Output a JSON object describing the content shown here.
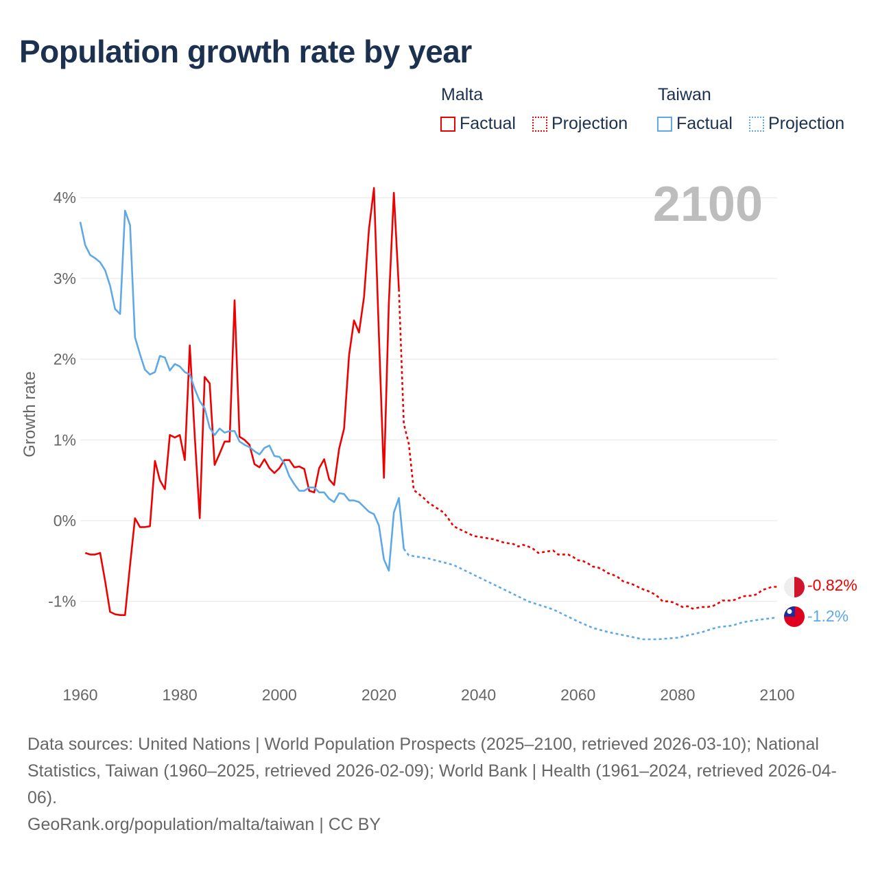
{
  "title": "Population growth rate by year",
  "legend": {
    "groups": [
      {
        "name": "Malta",
        "color": "#ee0000",
        "items": [
          "Factual",
          "Projection"
        ]
      },
      {
        "name": "Taiwan",
        "color": "#5fa8e8",
        "items": [
          "Factual",
          "Projection"
        ]
      }
    ]
  },
  "year_label": "2100",
  "end_labels": {
    "malta": "-0.82%",
    "taiwan": "-1.2%"
  },
  "footer": {
    "sources": "Data sources: United Nations | World Population Prospects (2025–2100, retrieved 2026-03-10); National Statistics, Taiwan (1960–2025, retrieved 2026-02-09); World Bank | Health (1961–2024, retrieved 2026-04-06).",
    "credit": "GeoRank.org/population/malta/taiwan | CC BY"
  },
  "chart_data": {
    "type": "line",
    "title": "Population growth rate by year",
    "xlabel": "",
    "ylabel": "Growth rate",
    "xlim": [
      1960,
      2100
    ],
    "ylim": [
      -1.9,
      4.4
    ],
    "xticks": [
      "1960",
      "1980",
      "2000",
      "2020",
      "2040",
      "2060",
      "2080",
      "2100"
    ],
    "yticks": [
      {
        "v": 4,
        "label": "4%"
      },
      {
        "v": 3,
        "label": "3%"
      },
      {
        "v": 2,
        "label": "2%"
      },
      {
        "v": 1,
        "label": "1%"
      },
      {
        "v": 0,
        "label": "0%"
      },
      {
        "v": -1,
        "label": "-1%"
      }
    ],
    "grid": true,
    "series": [
      {
        "name": "Malta Factual",
        "color": "#ee0000",
        "dashed": false,
        "x_start": 1961,
        "values": [
          -0.4,
          -0.42,
          -0.42,
          -0.4,
          -0.75,
          -1.13,
          -1.16,
          -1.17,
          -1.17,
          -0.55,
          0.03,
          -0.08,
          -0.08,
          -0.07,
          0.74,
          0.5,
          0.39,
          1.06,
          1.03,
          1.06,
          0.75,
          2.17,
          1.05,
          0.03,
          1.78,
          1.7,
          0.69,
          0.83,
          0.98,
          0.98,
          2.73,
          1.04,
          1.0,
          0.94,
          0.7,
          0.66,
          0.76,
          0.65,
          0.59,
          0.65,
          0.75,
          0.75,
          0.66,
          0.67,
          0.64,
          0.37,
          0.35,
          0.65,
          0.76,
          0.51,
          0.44,
          0.89,
          1.14,
          2.05,
          2.48,
          2.33,
          2.77,
          3.61,
          4.12,
          2.3,
          0.53,
          2.7,
          4.06,
          2.87
        ]
      },
      {
        "name": "Malta Projection",
        "color": "#ee0000",
        "dashed": true,
        "x_start": 2024,
        "values": [
          2.87,
          1.2,
          0.95,
          0.38,
          0.33,
          0.28,
          0.22,
          0.18,
          0.14,
          0.1,
          0.02,
          -0.07,
          -0.1,
          -0.13,
          -0.16,
          -0.19,
          -0.2,
          -0.21,
          -0.22,
          -0.23,
          -0.25,
          -0.27,
          -0.28,
          -0.29,
          -0.32,
          -0.3,
          -0.32,
          -0.35,
          -0.4,
          -0.39,
          -0.38,
          -0.37,
          -0.42,
          -0.42,
          -0.42,
          -0.45,
          -0.49,
          -0.5,
          -0.53,
          -0.57,
          -0.58,
          -0.61,
          -0.65,
          -0.67,
          -0.7,
          -0.75,
          -0.77,
          -0.79,
          -0.82,
          -0.85,
          -0.87,
          -0.9,
          -0.94,
          -1.0,
          -1.0,
          -1.01,
          -1.04,
          -1.07,
          -1.06,
          -1.09,
          -1.08,
          -1.07,
          -1.07,
          -1.06,
          -1.03,
          -0.99,
          -0.99,
          -0.99,
          -0.97,
          -0.94,
          -0.93,
          -0.93,
          -0.91,
          -0.86,
          -0.84,
          -0.82,
          -0.82
        ]
      },
      {
        "name": "Taiwan Factual",
        "color": "#5fa8e8",
        "dashed": false,
        "x_start": 1960,
        "values": [
          3.7,
          3.41,
          3.29,
          3.25,
          3.2,
          3.1,
          2.91,
          2.62,
          2.56,
          3.84,
          3.66,
          2.27,
          2.06,
          1.87,
          1.81,
          1.84,
          2.04,
          2.02,
          1.86,
          1.94,
          1.91,
          1.84,
          1.81,
          1.63,
          1.48,
          1.39,
          1.15,
          1.06,
          1.14,
          1.09,
          1.11,
          1.11,
          0.98,
          0.94,
          0.91,
          0.86,
          0.82,
          0.9,
          0.93,
          0.8,
          0.79,
          0.71,
          0.55,
          0.45,
          0.37,
          0.37,
          0.41,
          0.41,
          0.35,
          0.35,
          0.27,
          0.23,
          0.34,
          0.33,
          0.25,
          0.25,
          0.23,
          0.17,
          0.11,
          0.08,
          -0.06,
          -0.48,
          -0.62,
          0.1,
          0.28,
          -0.35
        ]
      },
      {
        "name": "Taiwan Projection",
        "color": "#5fa8e8",
        "dashed": true,
        "x": [
          2025,
          2026,
          2030,
          2035,
          2040,
          2045,
          2050,
          2055,
          2060,
          2063,
          2066,
          2070,
          2073,
          2076,
          2080,
          2085,
          2088,
          2091,
          2093,
          2096,
          2100
        ],
        "y": [
          -0.35,
          -0.43,
          -0.47,
          -0.55,
          -0.7,
          -0.85,
          -1.0,
          -1.1,
          -1.25,
          -1.33,
          -1.38,
          -1.43,
          -1.47,
          -1.47,
          -1.45,
          -1.38,
          -1.32,
          -1.3,
          -1.26,
          -1.23,
          -1.2
        ]
      }
    ]
  }
}
